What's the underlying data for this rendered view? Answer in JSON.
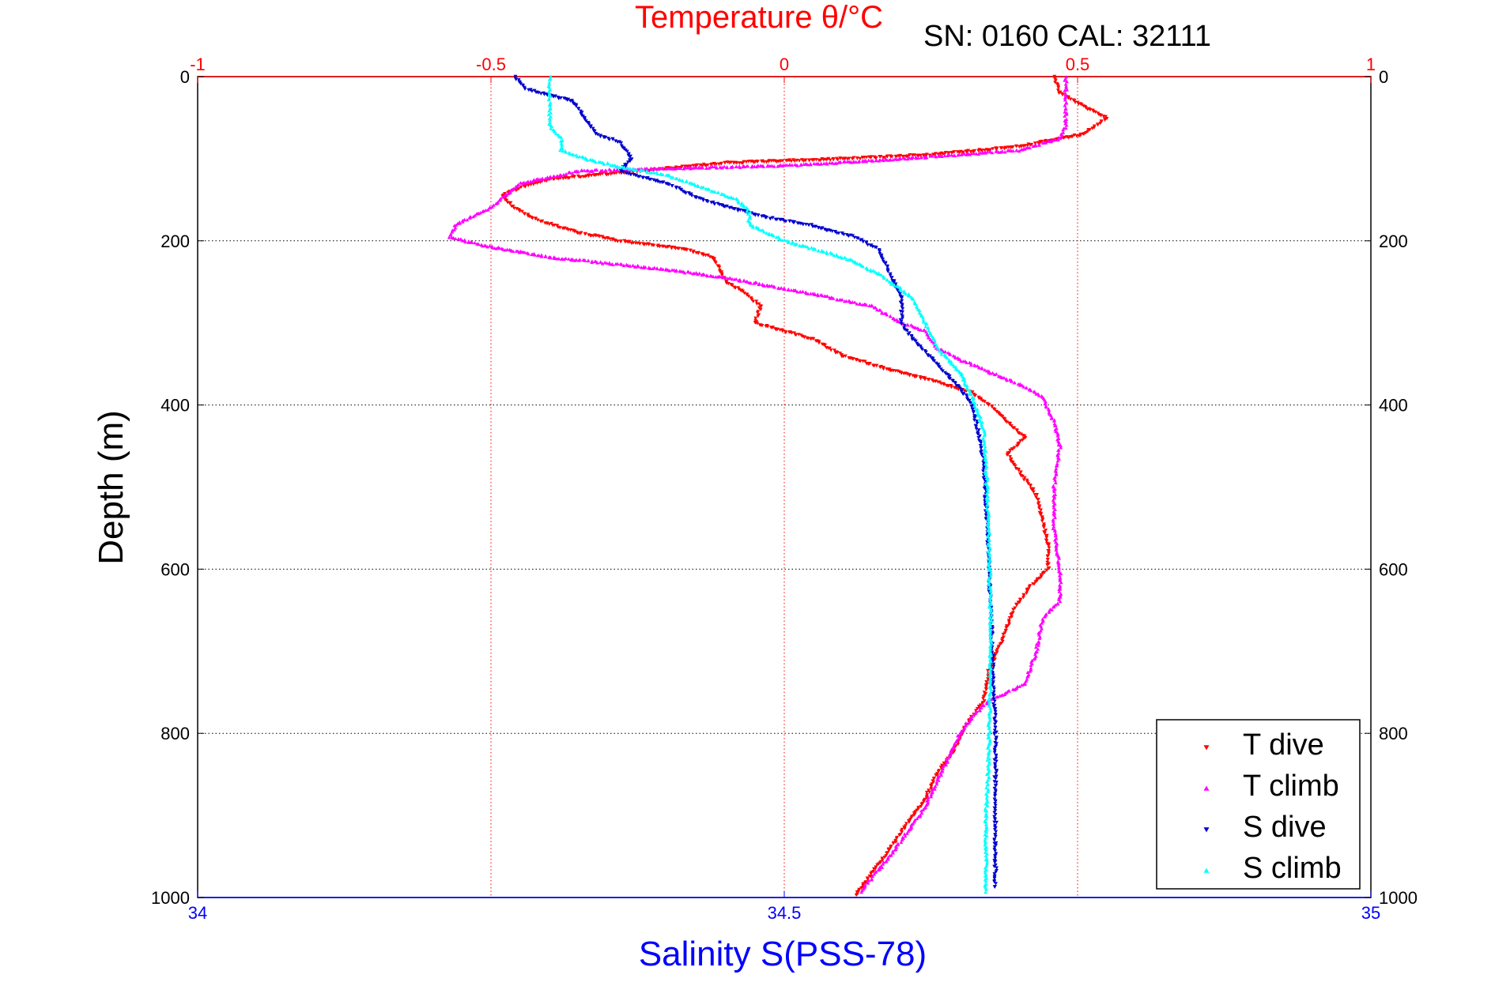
{
  "chart_data": {
    "type": "scatter",
    "title": "Temperature θ/°C",
    "subtitle": "SN: 0160  CAL: 32111",
    "ylabel": "Depth (m)",
    "xlabel_bottom": "Salinity S(PSS-78)",
    "y_axis": {
      "min": 0,
      "max": 1000,
      "reversed": true,
      "ticks": [
        "0",
        "200",
        "400",
        "600",
        "800",
        "1000"
      ]
    },
    "x_top_axis": {
      "min": -1,
      "max": 1,
      "ticks": [
        "-1",
        "-0.5",
        "0",
        "0.5",
        "1"
      ],
      "color": "#ff0000",
      "grid": true
    },
    "x_bottom_axis": {
      "min": 34,
      "max": 35,
      "ticks": [
        "34",
        "34.5",
        "35"
      ],
      "color": "#0000ff"
    },
    "legend": {
      "placement": "bottom-right",
      "entries": [
        {
          "label": "T dive",
          "color": "#ff0000",
          "marker": "triangle-down"
        },
        {
          "label": "T climb",
          "color": "#ff00ff",
          "marker": "triangle-up"
        },
        {
          "label": "S dive",
          "color": "#0000cc",
          "marker": "triangle-down"
        },
        {
          "label": "S climb",
          "color": "#00ffff",
          "marker": "triangle-up"
        }
      ]
    },
    "series": [
      {
        "name": "T dive",
        "axis": "temperature",
        "color": "#ff0000",
        "marker": "triangle-down",
        "points": [
          [
            0.46,
            0
          ],
          [
            0.47,
            20
          ],
          [
            0.52,
            40
          ],
          [
            0.55,
            50
          ],
          [
            0.51,
            70
          ],
          [
            0.4,
            85
          ],
          [
            0.25,
            95
          ],
          [
            0.1,
            100
          ],
          [
            -0.1,
            105
          ],
          [
            -0.25,
            115
          ],
          [
            -0.4,
            125
          ],
          [
            -0.45,
            135
          ],
          [
            -0.48,
            145
          ],
          [
            -0.46,
            160
          ],
          [
            -0.42,
            175
          ],
          [
            -0.35,
            190
          ],
          [
            -0.28,
            200
          ],
          [
            -0.17,
            210
          ],
          [
            -0.12,
            220
          ],
          [
            -0.1,
            250
          ],
          [
            -0.07,
            262
          ],
          [
            -0.04,
            280
          ],
          [
            -0.05,
            300
          ],
          [
            0.05,
            320
          ],
          [
            0.1,
            340
          ],
          [
            0.17,
            355
          ],
          [
            0.25,
            370
          ],
          [
            0.32,
            385
          ],
          [
            0.35,
            400
          ],
          [
            0.38,
            420
          ],
          [
            0.41,
            440
          ],
          [
            0.38,
            460
          ],
          [
            0.4,
            480
          ],
          [
            0.43,
            510
          ],
          [
            0.44,
            540
          ],
          [
            0.45,
            570
          ],
          [
            0.45,
            600
          ],
          [
            0.42,
            620
          ],
          [
            0.39,
            650
          ],
          [
            0.37,
            690
          ],
          [
            0.35,
            720
          ],
          [
            0.34,
            760
          ],
          [
            0.31,
            790
          ],
          [
            0.29,
            820
          ],
          [
            0.26,
            850
          ],
          [
            0.24,
            880
          ],
          [
            0.22,
            900
          ],
          [
            0.19,
            930
          ],
          [
            0.17,
            950
          ],
          [
            0.14,
            980
          ],
          [
            0.12,
            998
          ]
        ]
      },
      {
        "name": "T climb",
        "axis": "temperature",
        "color": "#ff00ff",
        "marker": "triangle-up",
        "points": [
          [
            0.48,
            0
          ],
          [
            0.48,
            20
          ],
          [
            0.48,
            40
          ],
          [
            0.48,
            60
          ],
          [
            0.47,
            75
          ],
          [
            0.4,
            90
          ],
          [
            0.2,
            100
          ],
          [
            0.02,
            108
          ],
          [
            -0.2,
            112
          ],
          [
            -0.35,
            115
          ],
          [
            -0.45,
            130
          ],
          [
            -0.5,
            160
          ],
          [
            -0.56,
            180
          ],
          [
            -0.57,
            195
          ],
          [
            -0.52,
            205
          ],
          [
            -0.4,
            220
          ],
          [
            -0.2,
            235
          ],
          [
            -0.1,
            245
          ],
          [
            0.05,
            265
          ],
          [
            0.15,
            280
          ],
          [
            0.2,
            300
          ],
          [
            0.24,
            310
          ],
          [
            0.26,
            330
          ],
          [
            0.3,
            345
          ],
          [
            0.35,
            360
          ],
          [
            0.4,
            375
          ],
          [
            0.44,
            390
          ],
          [
            0.46,
            420
          ],
          [
            0.47,
            450
          ],
          [
            0.46,
            500
          ],
          [
            0.46,
            550
          ],
          [
            0.47,
            600
          ],
          [
            0.47,
            640
          ],
          [
            0.44,
            660
          ],
          [
            0.43,
            700
          ],
          [
            0.41,
            740
          ],
          [
            0.35,
            760
          ],
          [
            0.32,
            780
          ],
          [
            0.3,
            800
          ],
          [
            0.28,
            830
          ],
          [
            0.26,
            860
          ],
          [
            0.24,
            890
          ],
          [
            0.21,
            920
          ],
          [
            0.18,
            950
          ],
          [
            0.15,
            975
          ],
          [
            0.13,
            995
          ]
        ]
      },
      {
        "name": "S dive",
        "axis": "salinity",
        "color": "#0000cc",
        "marker": "triangle-down",
        "points": [
          [
            34.27,
            0
          ],
          [
            34.28,
            15
          ],
          [
            34.32,
            30
          ],
          [
            34.33,
            50
          ],
          [
            34.34,
            70
          ],
          [
            34.36,
            80
          ],
          [
            34.37,
            100
          ],
          [
            34.36,
            115
          ],
          [
            34.4,
            130
          ],
          [
            34.43,
            150
          ],
          [
            34.48,
            170
          ],
          [
            34.52,
            180
          ],
          [
            34.56,
            195
          ],
          [
            34.58,
            210
          ],
          [
            34.59,
            240
          ],
          [
            34.6,
            270
          ],
          [
            34.6,
            300
          ],
          [
            34.61,
            320
          ],
          [
            34.63,
            350
          ],
          [
            34.65,
            380
          ],
          [
            34.66,
            400
          ],
          [
            34.665,
            430
          ],
          [
            34.67,
            470
          ],
          [
            34.672,
            520
          ],
          [
            34.674,
            570
          ],
          [
            34.675,
            620
          ],
          [
            34.677,
            680
          ],
          [
            34.678,
            740
          ],
          [
            34.68,
            800
          ],
          [
            34.68,
            860
          ],
          [
            34.68,
            920
          ],
          [
            34.68,
            990
          ]
        ]
      },
      {
        "name": "S climb",
        "axis": "salinity",
        "color": "#00ffff",
        "marker": "triangle-up",
        "points": [
          [
            34.3,
            0
          ],
          [
            34.3,
            20
          ],
          [
            34.3,
            40
          ],
          [
            34.3,
            60
          ],
          [
            34.31,
            75
          ],
          [
            34.31,
            90
          ],
          [
            34.33,
            100
          ],
          [
            34.36,
            110
          ],
          [
            34.4,
            120
          ],
          [
            34.43,
            135
          ],
          [
            34.46,
            150
          ],
          [
            34.47,
            165
          ],
          [
            34.47,
            180
          ],
          [
            34.5,
            200
          ],
          [
            34.55,
            220
          ],
          [
            34.58,
            240
          ],
          [
            34.61,
            270
          ],
          [
            34.62,
            300
          ],
          [
            34.63,
            330
          ],
          [
            34.65,
            360
          ],
          [
            34.66,
            390
          ],
          [
            34.67,
            430
          ],
          [
            34.672,
            480
          ],
          [
            34.674,
            540
          ],
          [
            34.675,
            600
          ],
          [
            34.676,
            660
          ],
          [
            34.676,
            720
          ],
          [
            34.675,
            780
          ],
          [
            34.674,
            840
          ],
          [
            34.672,
            900
          ],
          [
            34.672,
            960
          ],
          [
            34.672,
            995
          ]
        ]
      }
    ]
  }
}
